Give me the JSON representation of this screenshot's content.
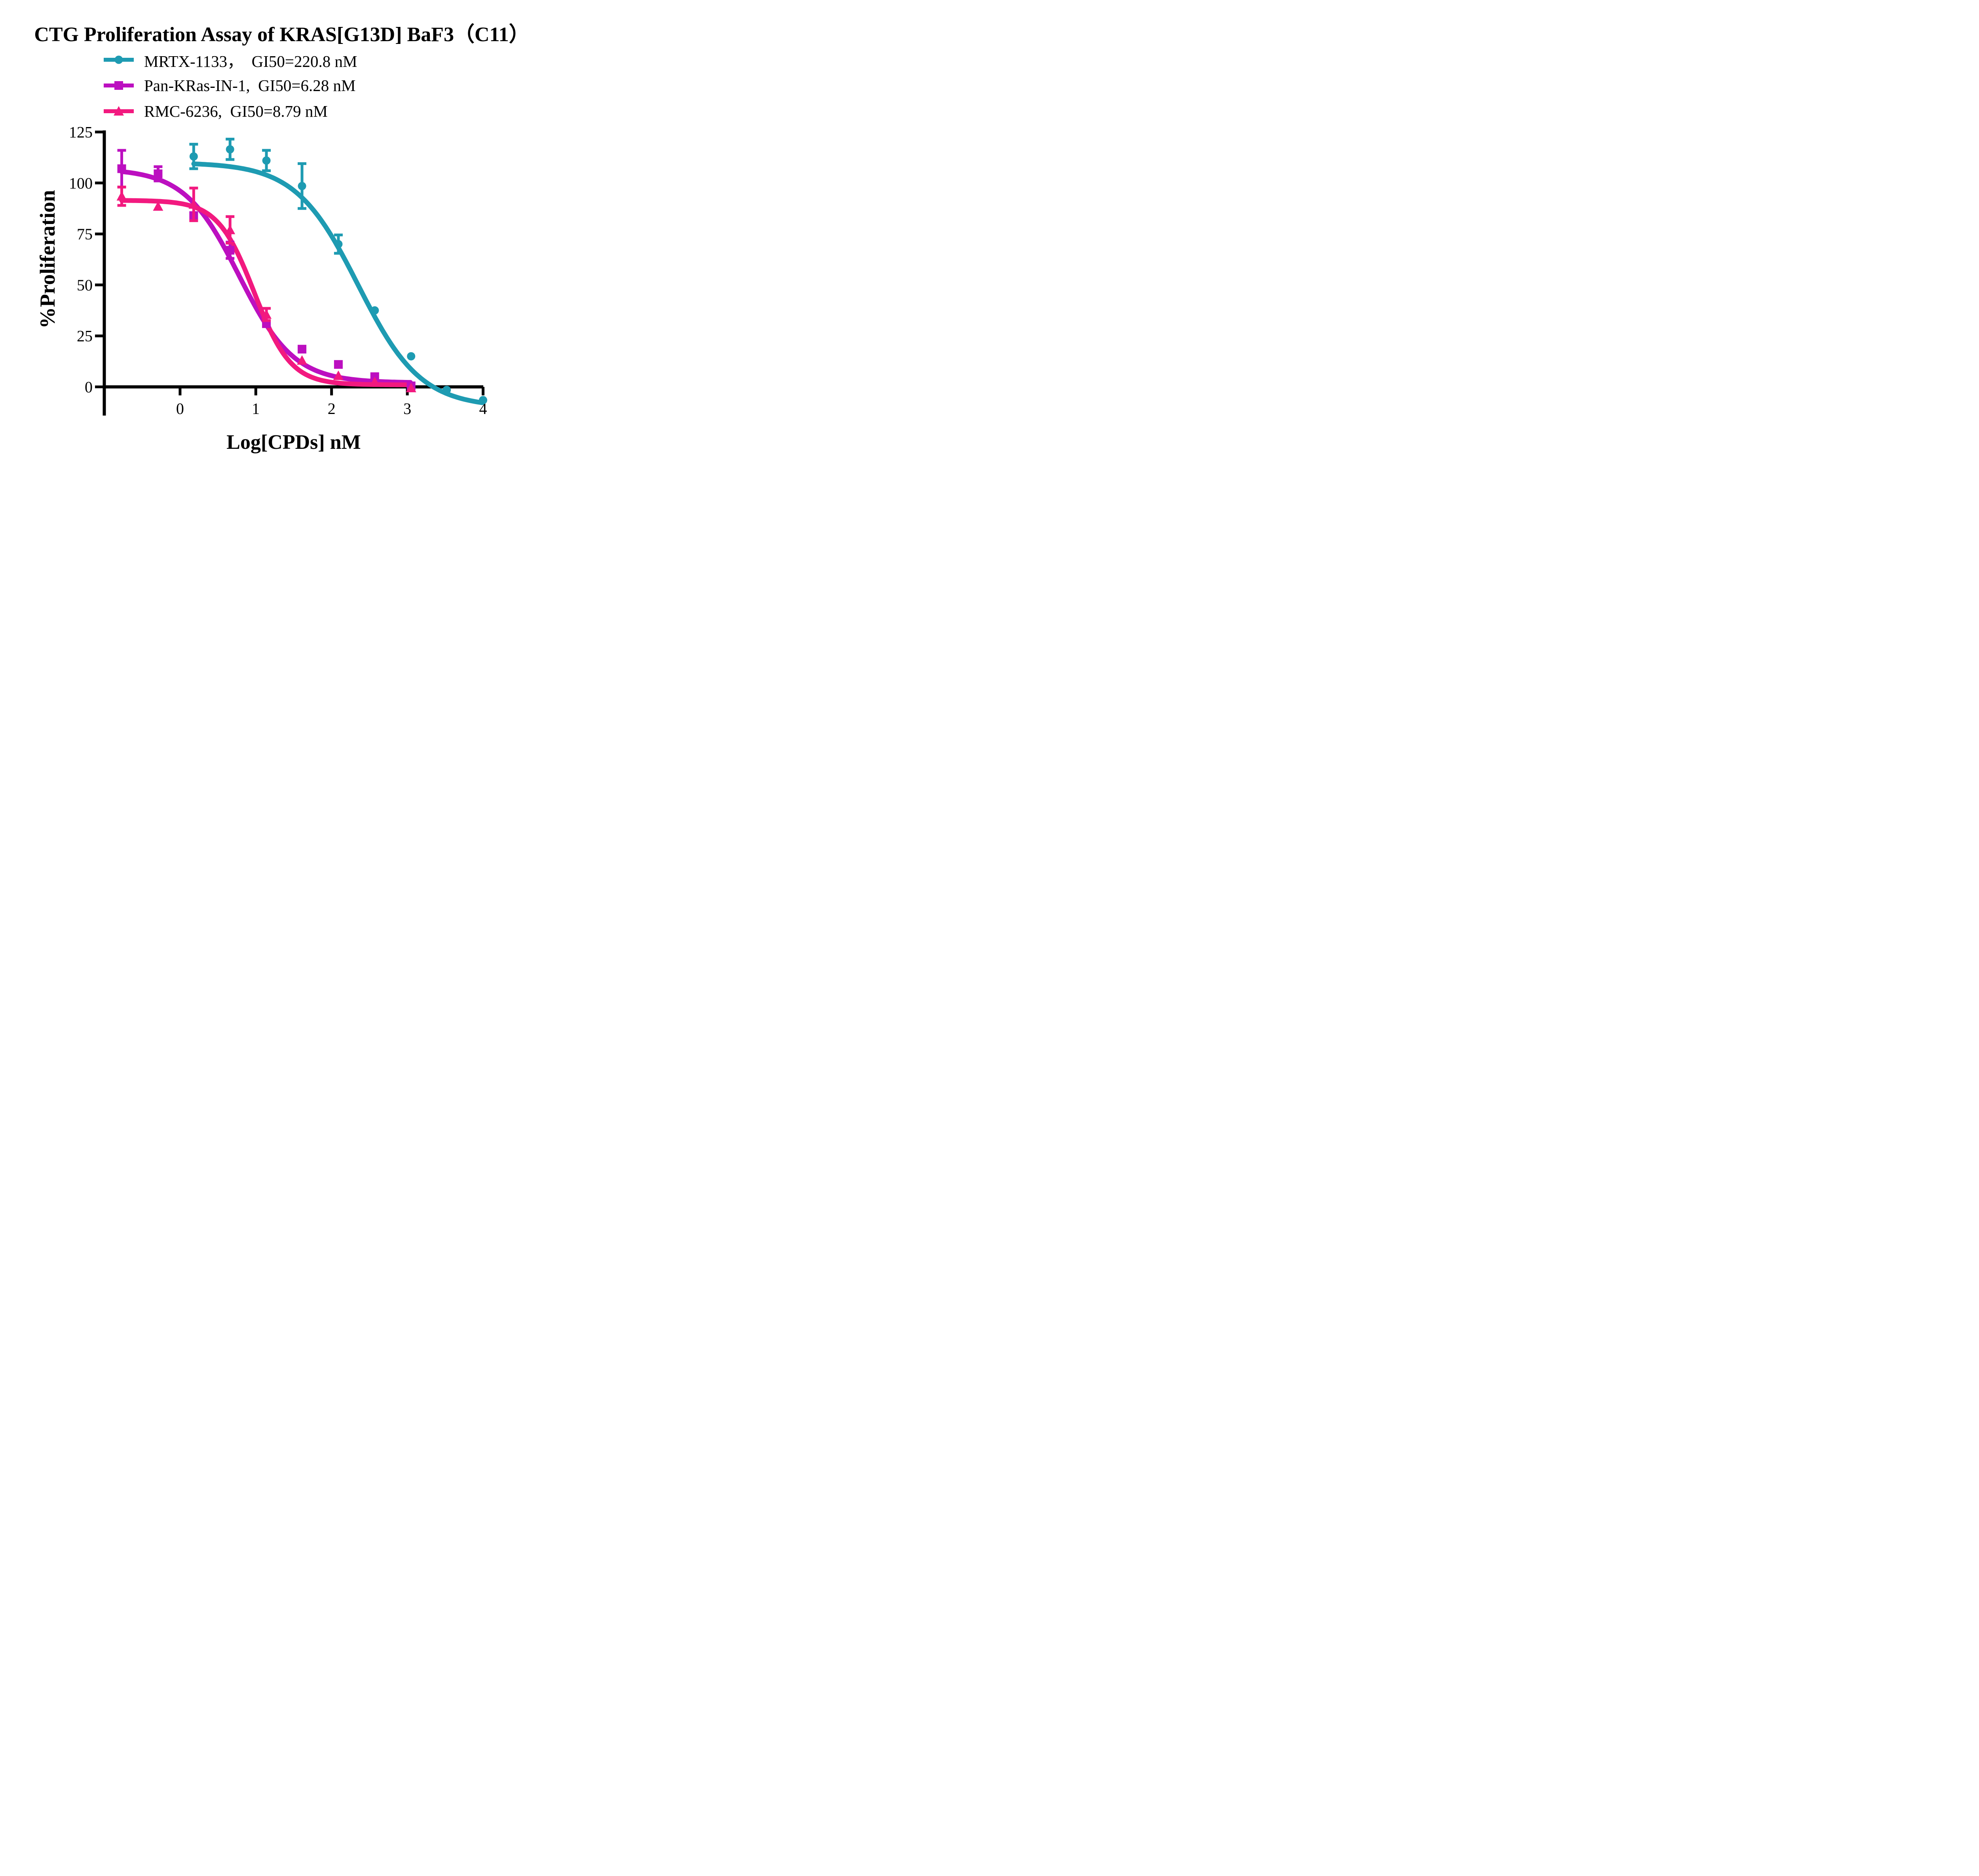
{
  "title": "CTG Proliferation Assay of KRAS[G13D] BaF3（C11）",
  "legend": [
    {
      "label": "MRTX-1133，  GI50=220.8 nM",
      "marker": "circle",
      "color": "#1E9BB2"
    },
    {
      "label": "Pan-KRas-IN-1,  GI50=6.28 nM",
      "marker": "square",
      "color": "#BC0FC0"
    },
    {
      "label": "RMC-6236,  GI50=8.79 nM",
      "marker": "triangle",
      "color": "#F2197F"
    }
  ],
  "chart_data": {
    "type": "scatter",
    "title": "CTG Proliferation Assay of KRAS[G13D] BaF3（C11）",
    "xlabel": "Log[CPDs] nM",
    "ylabel": "%Proliferation",
    "xlim": [
      -1,
      4
    ],
    "ylim": [
      -14,
      125
    ],
    "x_ticks": [
      0,
      1,
      2,
      3,
      4
    ],
    "y_ticks": [
      0,
      25,
      50,
      75,
      100,
      125
    ],
    "grid": false,
    "legend_position": "top-left",
    "axis_color": "#000000",
    "series": [
      {
        "name": "MRTX-1133",
        "gi50_label": "GI50=220.8 nM",
        "gi50_nM": 220.8,
        "color": "#1E9BB2",
        "marker": "circle",
        "x": [
          0.18,
          0.66,
          1.14,
          1.61,
          2.09,
          2.57,
          3.05,
          3.52,
          4.0
        ],
        "y": [
          113,
          116.5,
          111,
          98.5,
          70,
          37.5,
          15,
          -1.5,
          -6.5
        ],
        "err": [
          6,
          5,
          5,
          11,
          4.5,
          null,
          null,
          null,
          null
        ],
        "fit": {
          "top": 110,
          "bottom": -10,
          "log_ic50": 2.35,
          "hill": 1.05
        },
        "fit_range": [
          0.18,
          4.0
        ]
      },
      {
        "name": "Pan-KRas-IN-1",
        "gi50_label": "GI50=6.28 nM",
        "gi50_nM": 6.28,
        "color": "#BC0FC0",
        "marker": "square",
        "x": [
          -0.77,
          -0.29,
          0.18,
          0.66,
          1.14,
          1.61,
          2.09,
          2.57,
          3.05
        ],
        "y": [
          107,
          104.5,
          84,
          67,
          31,
          18.5,
          11,
          5,
          0.5
        ],
        "err": [
          9,
          3.5,
          null,
          4,
          null,
          null,
          null,
          null,
          null
        ],
        "fit": {
          "top": 107,
          "bottom": 2,
          "log_ic50": 0.78,
          "hill": 1.2
        },
        "fit_range": [
          -0.77,
          3.05
        ]
      },
      {
        "name": "RMC-6236",
        "gi50_label": "GI50=8.79 nM",
        "gi50_nM": 8.79,
        "color": "#F2197F",
        "marker": "triangle",
        "x": [
          -0.77,
          -0.29,
          0.18,
          0.66,
          1.14,
          1.61,
          2.09,
          2.57,
          3.05
        ],
        "y": [
          93.5,
          88.5,
          89.5,
          77,
          35.5,
          13,
          5.5,
          2.5,
          -0.5
        ],
        "err": [
          4.5,
          null,
          8,
          6.5,
          3,
          null,
          null,
          null,
          null
        ],
        "fit": {
          "top": 91.5,
          "bottom": 1,
          "log_ic50": 0.98,
          "hill": 1.8
        },
        "fit_range": [
          -0.77,
          3.05
        ]
      }
    ]
  }
}
